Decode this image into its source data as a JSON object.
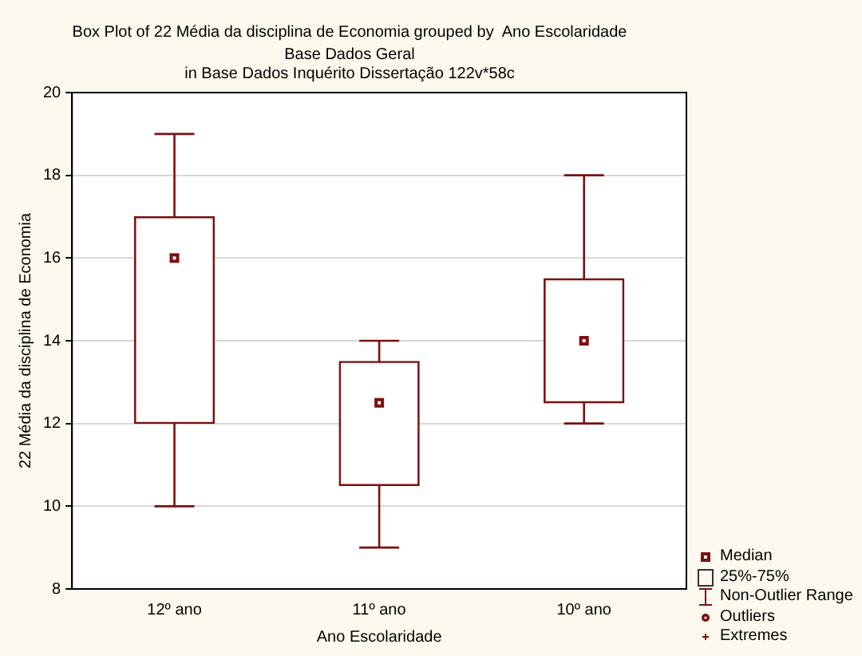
{
  "chart_data": {
    "type": "box",
    "title": "Box Plot of 22 Média da disciplina de Economia grouped by  Ano Escolaridade",
    "subtitle": "Base Dados Geral\nin Base Dados Inquérito Dissertação 122v*58c",
    "xlabel": "Ano Escolaridade",
    "ylabel": "22 Média da disciplina de Economia",
    "categories": [
      "12º ano",
      "11º ano",
      "10º ano"
    ],
    "boxes": [
      {
        "low": 10,
        "q1": 12,
        "median": 16,
        "q3": 17,
        "high": 19
      },
      {
        "low": 9,
        "q1": 10.5,
        "median": 12.5,
        "q3": 13.5,
        "high": 14
      },
      {
        "low": 12,
        "q1": 12.5,
        "median": 14,
        "q3": 15.5,
        "high": 18
      }
    ],
    "color": "#7b1010",
    "ylim": [
      8,
      20
    ],
    "yticks": [
      8,
      10,
      12,
      14,
      16,
      18,
      20
    ],
    "grid": "y",
    "annotations": [
      "Median",
      "25%-75%",
      "Non-Outlier Range",
      "Outliers",
      "Extremes"
    ]
  }
}
